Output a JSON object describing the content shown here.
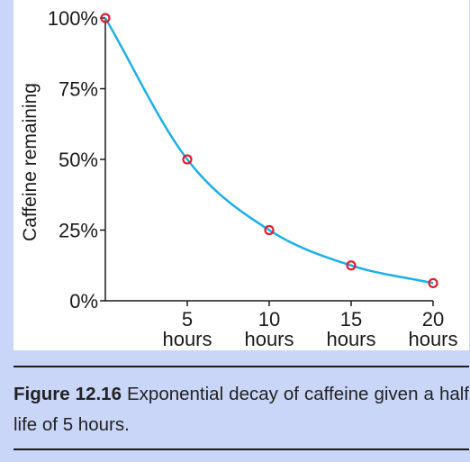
{
  "chart_data": {
    "type": "line",
    "title": "",
    "xlabel": "",
    "ylabel": "Caffeine remaining",
    "x": [
      0,
      5,
      10,
      15,
      20
    ],
    "x_unit_label": "hours",
    "xticks": [
      5,
      10,
      15,
      20
    ],
    "xlim": [
      0,
      20
    ],
    "ylim": [
      0,
      100
    ],
    "yticks": [
      0,
      25,
      50,
      75,
      100
    ],
    "ytick_labels": [
      "0%",
      "25%",
      "50%",
      "75%",
      "100%"
    ],
    "series": [
      {
        "values": [
          100,
          50,
          25,
          12.5,
          6.25
        ]
      }
    ],
    "grid": false,
    "curve_color": "#1ab0e8",
    "marker_color": "#e0202a"
  },
  "caption": {
    "label": "Figure 12.16",
    "text": "Exponential decay of caffeine given a half life of 5 hours."
  }
}
